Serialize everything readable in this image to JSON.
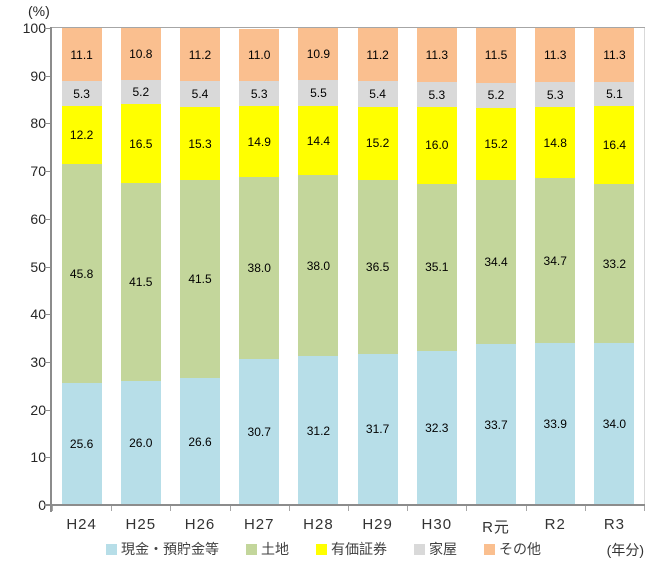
{
  "chart_data": {
    "type": "bar",
    "stacked": true,
    "percent": true,
    "title": "",
    "unit_label_y": "(%)",
    "unit_label_x": "(年分)",
    "grid": false,
    "legend_position": "bottom",
    "categories": [
      "H24",
      "H25",
      "H26",
      "H27",
      "H28",
      "H29",
      "H30",
      "R元",
      "R2",
      "R3"
    ],
    "series": [
      {
        "name": "現金・預貯金等",
        "color": "#B7DEE8",
        "values": [
          25.6,
          26.0,
          26.6,
          30.7,
          31.2,
          31.7,
          32.3,
          33.7,
          33.9,
          34.0
        ]
      },
      {
        "name": "土地",
        "color": "#C3D69B",
        "values": [
          45.8,
          41.5,
          41.5,
          38.0,
          38.0,
          36.5,
          35.1,
          34.4,
          34.7,
          33.2
        ]
      },
      {
        "name": "有価証券",
        "color": "#FFFF00",
        "values": [
          12.2,
          16.5,
          15.3,
          14.9,
          14.4,
          15.2,
          16.0,
          15.2,
          14.8,
          16.4
        ]
      },
      {
        "name": "家屋",
        "color": "#D9D9D9",
        "values": [
          5.3,
          5.2,
          5.4,
          5.3,
          5.5,
          5.4,
          5.3,
          5.2,
          5.3,
          5.1
        ]
      },
      {
        "name": "その他",
        "color": "#FABF8F",
        "values": [
          11.1,
          10.8,
          11.2,
          11.0,
          10.9,
          11.2,
          11.3,
          11.5,
          11.3,
          11.3
        ]
      }
    ],
    "y_axis": {
      "min": 0,
      "max": 100,
      "step": 10,
      "tick_labels": [
        "0",
        "10",
        "20",
        "30",
        "40",
        "50",
        "60",
        "70",
        "80",
        "90",
        "100"
      ]
    },
    "colors": {
      "axis_line": "#8c8c8c",
      "top_gridline": "#a6a6a6",
      "plot_right_border": "#d9d9d9",
      "label_text": "#000000",
      "axis_text": "#262626"
    }
  }
}
